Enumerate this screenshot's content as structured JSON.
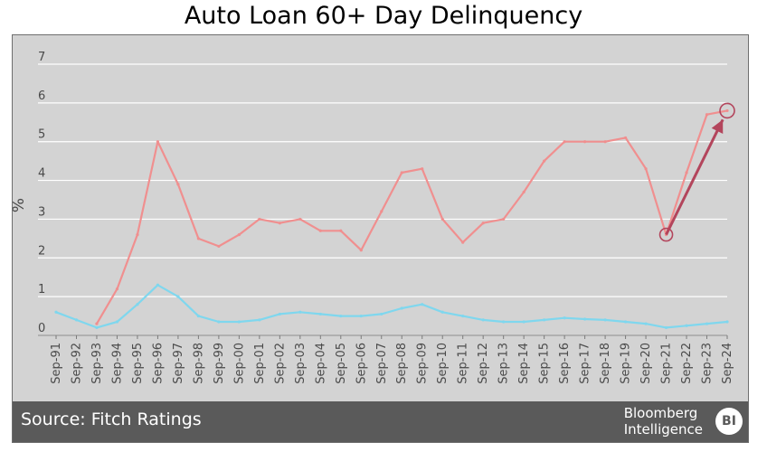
{
  "title": "Auto Loan 60+ Day Delinquency",
  "footer": {
    "source": "Source: Fitch Ratings",
    "brand_line1": "Bloomberg",
    "brand_line2": "Intelligence",
    "badge": "BI"
  },
  "colors": {
    "prime": "#7fd7ee",
    "subprime": "#f08f8f",
    "arrow": "#b3455c",
    "plot_bg": "#d3d3d3",
    "footer_bg": "#5a5a5a"
  },
  "chart_data": {
    "type": "line",
    "title": "Auto Loan 60+ Day Delinquency",
    "xlabel": "",
    "ylabel": "%",
    "ylim": [
      0,
      7
    ],
    "yticks": [
      "0",
      "1",
      "2",
      "3",
      "4",
      "5",
      "6",
      "7"
    ],
    "grid": "horizontal",
    "categories": [
      "Sep-91",
      "Sep-92",
      "Sep-93",
      "Sep-94",
      "Sep-95",
      "Sep-96",
      "Sep-97",
      "Sep-98",
      "Sep-99",
      "Sep-00",
      "Sep-01",
      "Sep-02",
      "Sep-03",
      "Sep-04",
      "Sep-05",
      "Sep-06",
      "Sep-07",
      "Sep-08",
      "Sep-09",
      "Sep-10",
      "Sep-11",
      "Sep-12",
      "Sep-13",
      "Sep-14",
      "Sep-15",
      "Sep-16",
      "Sep-17",
      "Sep-18",
      "Sep-19",
      "Sep-20",
      "Sep-21",
      "Sep-22",
      "Sep-23",
      "Sep-24"
    ],
    "series": [
      {
        "values": [
          0.6,
          0.4,
          0.2,
          0.35,
          0.8,
          1.3,
          1.0,
          0.5,
          0.35,
          0.35,
          0.4,
          0.55,
          0.6,
          0.55,
          0.5,
          0.5,
          0.55,
          0.7,
          0.8,
          0.6,
          0.5,
          0.4,
          0.35,
          0.35,
          0.4,
          0.45,
          0.42,
          0.4,
          0.35,
          0.3,
          0.2,
          0.25,
          0.3,
          0.35
        ]
      },
      {
        "values": [
          null,
          null,
          0.3,
          1.2,
          2.6,
          5.0,
          3.9,
          2.5,
          2.3,
          2.6,
          3.0,
          2.9,
          3.0,
          2.7,
          2.7,
          2.2,
          3.2,
          4.2,
          4.3,
          3.0,
          2.4,
          2.9,
          3.0,
          3.7,
          4.5,
          5.0,
          5.0,
          5.0,
          5.1,
          4.3,
          2.6,
          4.2,
          5.7,
          5.8
        ]
      }
    ],
    "annotation": {
      "type": "arrow",
      "from": [
        "Sep-21",
        2.6
      ],
      "to": [
        "Sep-24",
        5.8
      ]
    }
  }
}
